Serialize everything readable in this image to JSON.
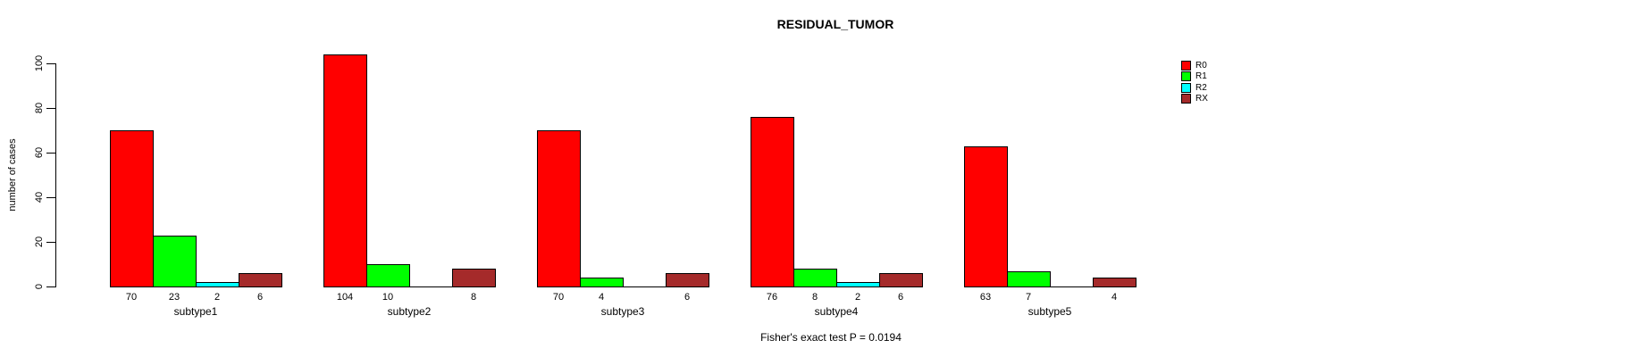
{
  "title": "RESIDUAL_TUMOR",
  "annotation": "Fisher's exact test P = 0.0194",
  "chart_data": {
    "type": "bar",
    "title": "RESIDUAL_TUMOR",
    "xlabel": "",
    "ylabel": "number of cases",
    "ylim": [
      0,
      100
    ],
    "yticks": [
      0,
      20,
      40,
      60,
      80,
      100
    ],
    "grid": false,
    "legend_position": "top-right",
    "categories": [
      "subtype1",
      "subtype2",
      "subtype3",
      "subtype4",
      "subtype5"
    ],
    "series": [
      {
        "name": "R0",
        "color": "#ff0000",
        "values": [
          70,
          104,
          70,
          76,
          63
        ]
      },
      {
        "name": "R1",
        "color": "#00ff00",
        "values": [
          23,
          10,
          4,
          8,
          7
        ]
      },
      {
        "name": "R2",
        "color": "#00ffff",
        "values": [
          2,
          0,
          0,
          2,
          0
        ]
      },
      {
        "name": "RX",
        "color": "#a52a2a",
        "values": [
          6,
          8,
          6,
          6,
          4
        ]
      }
    ],
    "bar_value_labels": {
      "subtype1": [
        70,
        23,
        2,
        6
      ],
      "subtype2": [
        104,
        10,
        null,
        8
      ],
      "subtype3": [
        70,
        4,
        null,
        6
      ],
      "subtype4": [
        76,
        8,
        2,
        6
      ],
      "subtype5": [
        63,
        7,
        null,
        4
      ]
    },
    "hide_zero_value_labels": true,
    "annotation": "Fisher's exact test P = 0.0194"
  }
}
